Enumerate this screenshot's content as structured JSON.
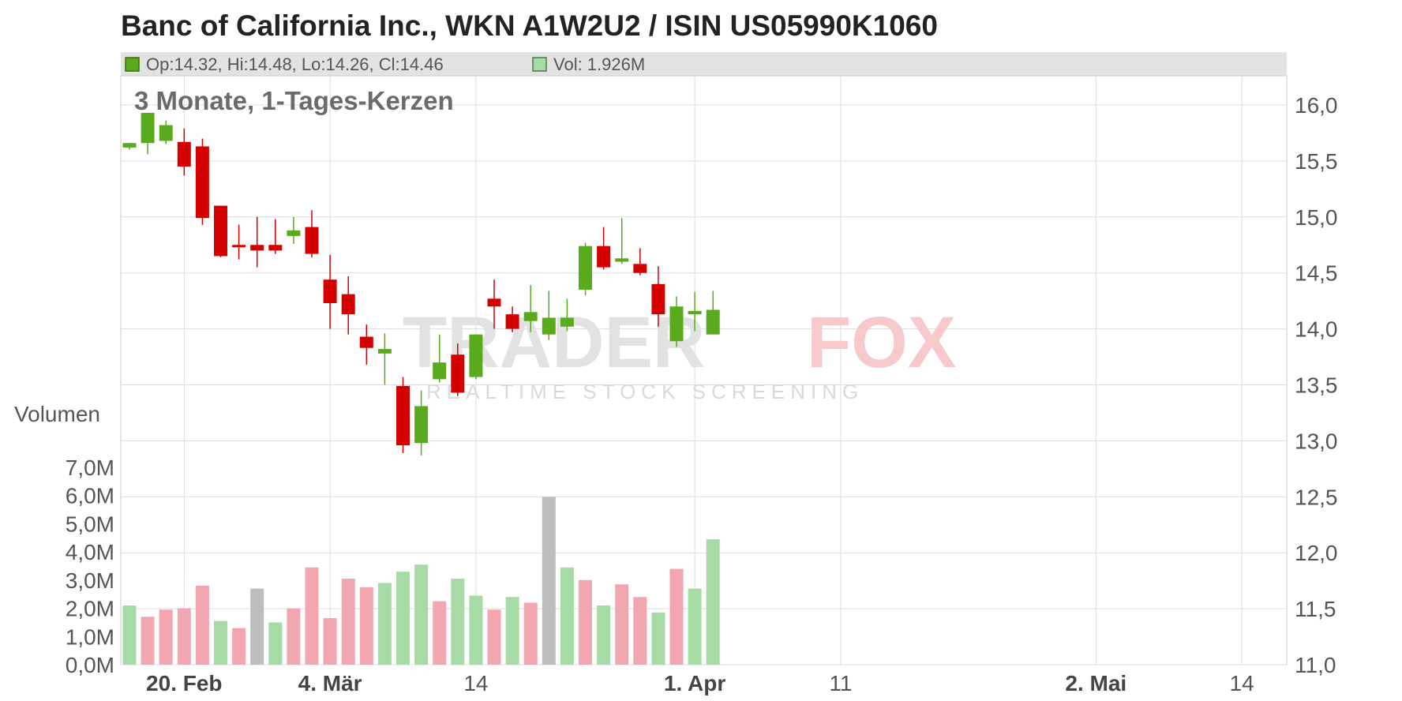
{
  "title": "Banc of California Inc., WKN A1W2U2 / ISIN US05990K1060",
  "subtitle": "3 Monate, 1-Tages-Kerzen",
  "legend": {
    "ohlc_text": "Op:14.32, Hi:14.48, Lo:14.26, Cl:14.46",
    "vol_text": "Vol: 1.926M"
  },
  "watermark": {
    "part1": "TRADER",
    "part2": "FOX",
    "tagline": "REALTIME STOCK SCREENING"
  },
  "colors": {
    "up": "#5aaa1e",
    "down": "#d40000",
    "vol_up": "#a7dba5",
    "vol_down": "#f2a6b0",
    "vol_neutral": "#bdbdbd",
    "grid": "#dddddd",
    "legend_bg": "#e3e3e3"
  },
  "chart_data": {
    "type": "candlestick",
    "price_axis": {
      "min": 11.0,
      "max": 16.0,
      "ticks": [
        "16,0",
        "15,5",
        "15,0",
        "14,5",
        "14,0",
        "13,5",
        "13,0",
        "12,5",
        "12,0",
        "11,5",
        "11,0"
      ]
    },
    "volume_axis": {
      "title": "Volumen",
      "min": 0,
      "max": 7.0,
      "unit": "M",
      "ticks": [
        "7,0M",
        "6,0M",
        "5,0M",
        "4,0M",
        "3,0M",
        "2,0M",
        "1,0M",
        "0,0M"
      ]
    },
    "x_labels": [
      {
        "index": 3,
        "label": "20. Feb",
        "bold": true
      },
      {
        "index": 11,
        "label": "4. Mär",
        "bold": true
      },
      {
        "index": 19,
        "label": "14",
        "bold": false
      },
      {
        "index": 31,
        "label": "1. Apr",
        "bold": true
      },
      {
        "index": 39,
        "label": "11",
        "bold": false
      },
      {
        "index": 53,
        "label": "2. Mai",
        "bold": true
      },
      {
        "index": 61,
        "label": "14",
        "bold": false
      }
    ],
    "series": [
      {
        "o": 15.62,
        "h": 15.66,
        "l": 15.6,
        "c": 15.66,
        "v": 2.1,
        "vc": "up"
      },
      {
        "o": 15.66,
        "h": 15.93,
        "l": 15.56,
        "c": 15.93,
        "v": 1.7,
        "vc": "down"
      },
      {
        "o": 15.68,
        "h": 15.86,
        "l": 15.65,
        "c": 15.82,
        "v": 1.95,
        "vc": "down"
      },
      {
        "o": 15.67,
        "h": 15.79,
        "l": 15.37,
        "c": 15.45,
        "v": 2.0,
        "vc": "down"
      },
      {
        "o": 15.63,
        "h": 15.7,
        "l": 14.93,
        "c": 14.99,
        "v": 2.8,
        "vc": "down"
      },
      {
        "o": 15.1,
        "h": 15.1,
        "l": 14.64,
        "c": 14.65,
        "v": 1.55,
        "vc": "up"
      },
      {
        "o": 14.75,
        "h": 14.93,
        "l": 14.62,
        "c": 14.73,
        "v": 1.3,
        "vc": "down"
      },
      {
        "o": 14.75,
        "h": 15.0,
        "l": 14.55,
        "c": 14.7,
        "v": 2.7,
        "vc": "neutral"
      },
      {
        "o": 14.75,
        "h": 14.98,
        "l": 14.67,
        "c": 14.7,
        "v": 1.5,
        "vc": "up"
      },
      {
        "o": 14.83,
        "h": 15.0,
        "l": 14.76,
        "c": 14.88,
        "v": 2.0,
        "vc": "down"
      },
      {
        "o": 14.91,
        "h": 15.06,
        "l": 14.64,
        "c": 14.67,
        "v": 3.45,
        "vc": "down"
      },
      {
        "o": 14.44,
        "h": 14.66,
        "l": 14.0,
        "c": 14.23,
        "v": 1.65,
        "vc": "down"
      },
      {
        "o": 14.31,
        "h": 14.47,
        "l": 13.95,
        "c": 14.13,
        "v": 3.05,
        "vc": "down"
      },
      {
        "o": 13.93,
        "h": 14.04,
        "l": 13.68,
        "c": 13.83,
        "v": 2.75,
        "vc": "down"
      },
      {
        "o": 13.78,
        "h": 13.96,
        "l": 13.5,
        "c": 13.82,
        "v": 2.9,
        "vc": "up"
      },
      {
        "o": 13.49,
        "h": 13.57,
        "l": 12.89,
        "c": 12.96,
        "v": 3.3,
        "vc": "up"
      },
      {
        "o": 12.98,
        "h": 13.45,
        "l": 12.87,
        "c": 13.31,
        "v": 3.55,
        "vc": "up"
      },
      {
        "o": 13.55,
        "h": 13.95,
        "l": 13.52,
        "c": 13.7,
        "v": 2.25,
        "vc": "down"
      },
      {
        "o": 13.77,
        "h": 13.87,
        "l": 13.4,
        "c": 13.43,
        "v": 3.05,
        "vc": "up"
      },
      {
        "o": 13.57,
        "h": 13.95,
        "l": 13.55,
        "c": 13.95,
        "v": 2.45,
        "vc": "up"
      },
      {
        "o": 14.27,
        "h": 14.44,
        "l": 14.0,
        "c": 14.2,
        "v": 1.95,
        "vc": "down"
      },
      {
        "o": 14.13,
        "h": 14.2,
        "l": 13.97,
        "c": 14.0,
        "v": 2.4,
        "vc": "up"
      },
      {
        "o": 14.07,
        "h": 14.39,
        "l": 13.97,
        "c": 14.15,
        "v": 2.2,
        "vc": "down"
      },
      {
        "o": 13.95,
        "h": 14.34,
        "l": 13.9,
        "c": 14.1,
        "v": 5.95,
        "vc": "neutral"
      },
      {
        "o": 14.02,
        "h": 14.27,
        "l": 13.98,
        "c": 14.1,
        "v": 3.45,
        "vc": "up"
      },
      {
        "o": 14.35,
        "h": 14.77,
        "l": 14.3,
        "c": 14.74,
        "v": 3.0,
        "vc": "down"
      },
      {
        "o": 14.74,
        "h": 14.91,
        "l": 14.53,
        "c": 14.55,
        "v": 2.1,
        "vc": "up"
      },
      {
        "o": 14.6,
        "h": 14.99,
        "l": 14.58,
        "c": 14.63,
        "v": 2.85,
        "vc": "down"
      },
      {
        "o": 14.58,
        "h": 14.72,
        "l": 14.48,
        "c": 14.5,
        "v": 2.4,
        "vc": "down"
      },
      {
        "o": 14.4,
        "h": 14.56,
        "l": 14.02,
        "c": 14.13,
        "v": 1.85,
        "vc": "up"
      },
      {
        "o": 13.89,
        "h": 14.29,
        "l": 13.84,
        "c": 14.2,
        "v": 3.4,
        "vc": "down"
      },
      {
        "o": 14.13,
        "h": 14.33,
        "l": 13.98,
        "c": 14.16,
        "v": 2.7,
        "vc": "up"
      },
      {
        "o": 13.95,
        "h": 14.34,
        "l": 13.95,
        "c": 14.17,
        "v": 4.45,
        "vc": "up"
      }
    ]
  }
}
